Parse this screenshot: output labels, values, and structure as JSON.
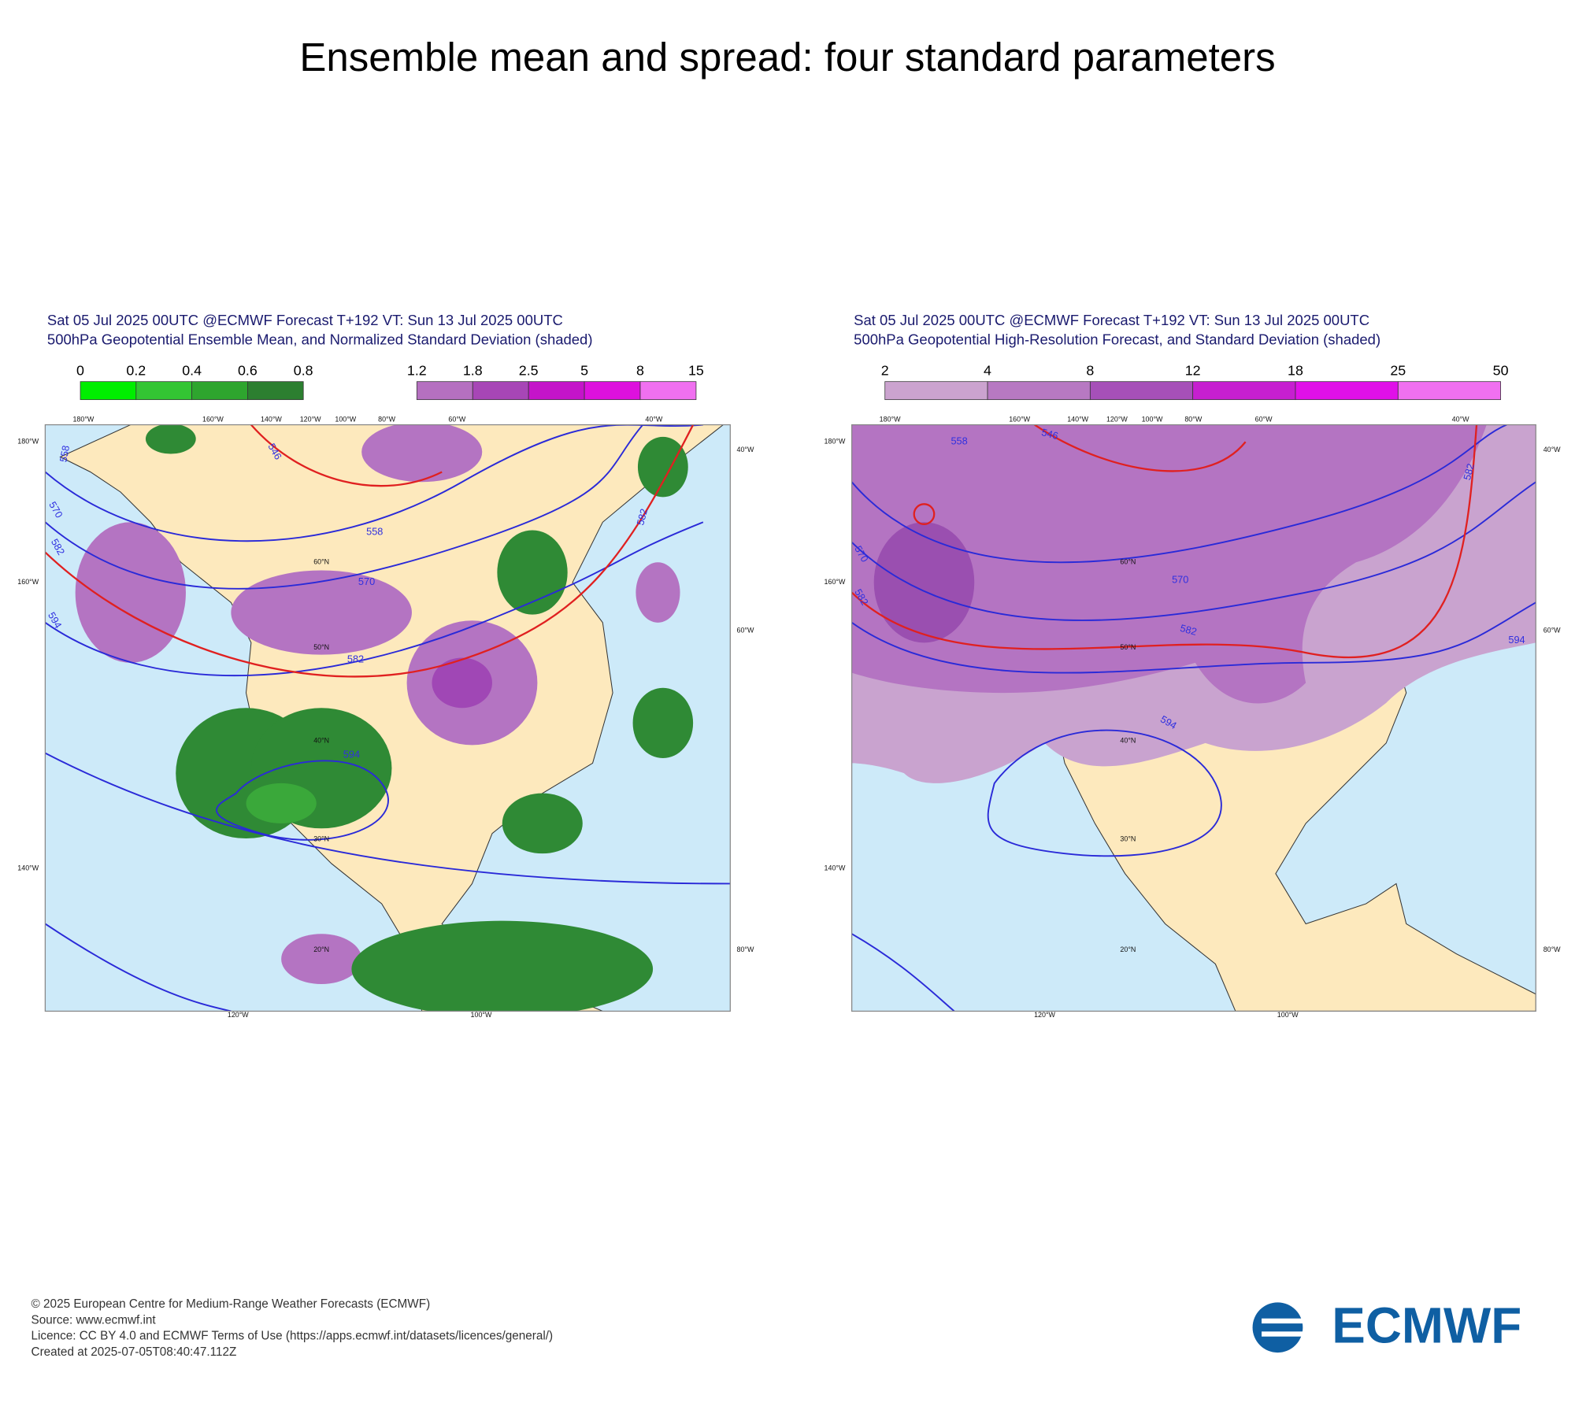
{
  "title": "Ensemble mean and spread: four standard parameters",
  "panels": [
    {
      "header": [
        "Sat 05 Jul 2025 00UTC @ECMWF Forecast T+192 VT: Sun 13 Jul 2025 00UTC",
        "500hPa Geopotential Ensemble Mean, and Normalized Standard Deviation (shaded)"
      ],
      "colorbars": [
        [
          "0",
          "0.2",
          "0.4",
          "0.6",
          "0.8"
        ],
        [
          "1.2",
          "1.8",
          "2.5",
          "5",
          "8",
          "15"
        ]
      ],
      "map_labels": [
        "180°W",
        "160°W",
        "140°W",
        "120°W",
        "100°W",
        "80°W",
        "60°W",
        "40°W",
        "180°W",
        "160°W",
        "140°W",
        "40°W",
        "60°W",
        "80°W",
        "120°W",
        "100°W",
        "60°N",
        "50°N",
        "40°N",
        "30°N",
        "20°N"
      ],
      "contour_labels": [
        "558",
        "570",
        "582",
        "594",
        "558",
        "570",
        "582",
        "594",
        "582",
        "546"
      ]
    },
    {
      "header": [
        "Sat 05 Jul 2025 00UTC @ECMWF Forecast T+192 VT: Sun 13 Jul 2025 00UTC",
        "500hPa Geopotential High-Resolution Forecast, and Standard Deviation (shaded)"
      ],
      "colorbars": [
        [
          "2",
          "4",
          "8",
          "12",
          "18",
          "25",
          "50"
        ]
      ],
      "map_labels": [
        "180°W",
        "160°W",
        "140°W",
        "120°W",
        "100°W",
        "80°W",
        "60°W",
        "40°W",
        "180°W",
        "160°W",
        "140°W",
        "40°W",
        "60°W",
        "80°W",
        "120°W",
        "100°W",
        "60°N",
        "50°N",
        "40°N",
        "30°N",
        "20°N"
      ],
      "contour_labels": [
        "558",
        "570",
        "582",
        "546",
        "570",
        "582",
        "594",
        "594",
        "582"
      ]
    }
  ],
  "footer": [
    "© 2025 European Centre for Medium-Range Weather Forecasts (ECMWF)",
    "Source: www.ecmwf.int",
    "Licence: CC BY 4.0 and ECMWF Terms of Use (https://apps.ecmwf.int/datasets/licences/general/)",
    "Created at 2025-07-05T08:40:47.112Z"
  ],
  "logo": "ECMWF"
}
